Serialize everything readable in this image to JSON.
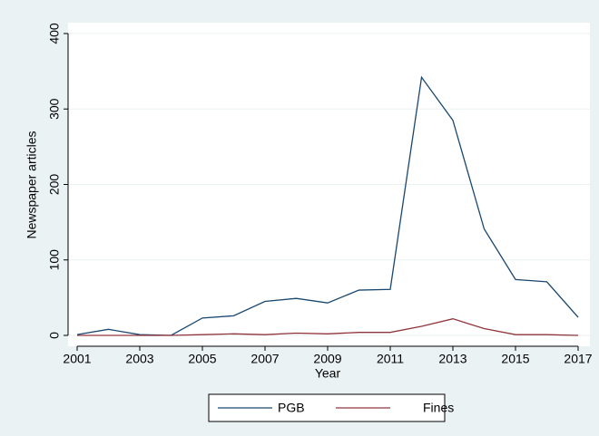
{
  "chart_data": {
    "type": "line",
    "x_label": "Year",
    "y_label": "Newspaper articles",
    "x": [
      2001,
      2002,
      2003,
      2004,
      2005,
      2006,
      2007,
      2008,
      2009,
      2010,
      2011,
      2012,
      2013,
      2014,
      2015,
      2016,
      2017
    ],
    "series": [
      {
        "name": "PGB",
        "color": "#1a476f",
        "values": [
          1,
          8,
          1,
          0,
          23,
          26,
          45,
          49,
          43,
          60,
          61,
          342,
          285,
          141,
          74,
          71,
          24
        ]
      },
      {
        "name": "Fines",
        "color": "#90353b",
        "values": [
          0,
          0,
          0,
          0,
          1,
          2,
          1,
          3,
          2,
          4,
          4,
          12,
          22,
          9,
          1,
          1,
          0
        ]
      }
    ],
    "xlim": [
      2001,
      2017
    ],
    "xticks": [
      2001,
      2003,
      2005,
      2007,
      2009,
      2011,
      2013,
      2015,
      2017
    ],
    "ylim": [
      0,
      400
    ],
    "yticks": [
      0,
      100,
      200,
      300,
      400
    ],
    "grid": true,
    "legend": "bottom"
  }
}
